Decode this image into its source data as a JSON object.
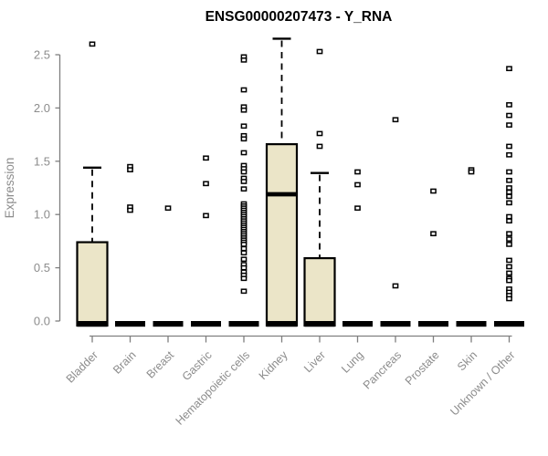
{
  "chart_data": {
    "type": "boxplot",
    "title": "ENSG00000207473 - Y_RNA",
    "ylabel": "Expression",
    "xlabel": "",
    "ylim": [
      0,
      2.5
    ],
    "yticks": [
      0.0,
      0.5,
      1.0,
      1.5,
      2.0,
      2.5
    ],
    "grid": false,
    "legend": "none",
    "categories": [
      "Bladder",
      "Brain",
      "Breast",
      "Gastric",
      "Hematopoietic cells",
      "Kidney",
      "Liver",
      "Lung",
      "Pancreas",
      "Prostate",
      "Skin",
      "Unknown / Other"
    ],
    "series": [
      {
        "category": "Bladder",
        "q1": 0,
        "median": 0,
        "q3": 0.74,
        "whisker_low": 0,
        "whisker_high": 1.44,
        "outliers": [
          2.6
        ]
      },
      {
        "category": "Brain",
        "q1": 0,
        "median": 0,
        "q3": 0,
        "whisker_low": 0,
        "whisker_high": 0,
        "outliers": [
          1.45,
          1.42,
          1.07,
          1.04
        ]
      },
      {
        "category": "Breast",
        "q1": 0,
        "median": 0,
        "q3": 0,
        "whisker_low": 0,
        "whisker_high": 0,
        "outliers": [
          1.06
        ]
      },
      {
        "category": "Gastric",
        "q1": 0,
        "median": 0,
        "q3": 0,
        "whisker_low": 0,
        "whisker_high": 0,
        "outliers": [
          1.53,
          1.29,
          0.99
        ]
      },
      {
        "category": "Hematopoietic cells",
        "q1": 0,
        "median": 0,
        "q3": 0,
        "whisker_low": 0,
        "whisker_high": 0,
        "outliers": [
          2.48,
          2.45,
          2.17,
          2.01,
          1.98,
          1.83,
          1.74,
          1.71,
          1.58,
          1.46,
          1.43,
          1.4,
          1.34,
          1.31,
          1.24,
          1.1,
          1.08,
          1.06,
          1.04,
          1.02,
          1.0,
          0.98,
          0.96,
          0.94,
          0.92,
          0.9,
          0.88,
          0.86,
          0.84,
          0.82,
          0.8,
          0.78,
          0.76,
          0.74,
          0.72,
          0.68,
          0.64,
          0.58,
          0.53,
          0.5,
          0.46,
          0.43,
          0.4,
          0.28
        ]
      },
      {
        "category": "Kidney",
        "q1": 0,
        "median": 1.19,
        "q3": 1.66,
        "whisker_low": 0,
        "whisker_high": 2.65,
        "outliers": []
      },
      {
        "category": "Liver",
        "q1": 0,
        "median": 0,
        "q3": 0.59,
        "whisker_low": 0,
        "whisker_high": 1.39,
        "outliers": [
          2.53,
          1.76,
          1.64
        ]
      },
      {
        "category": "Lung",
        "q1": 0,
        "median": 0,
        "q3": 0,
        "whisker_low": 0,
        "whisker_high": 0,
        "outliers": [
          1.4,
          1.28,
          1.06
        ]
      },
      {
        "category": "Pancreas",
        "q1": 0,
        "median": 0,
        "q3": 0,
        "whisker_low": 0,
        "whisker_high": 0,
        "outliers": [
          1.89,
          0.33
        ]
      },
      {
        "category": "Prostate",
        "q1": 0,
        "median": 0,
        "q3": 0,
        "whisker_low": 0,
        "whisker_high": 0,
        "outliers": [
          1.22,
          0.82
        ]
      },
      {
        "category": "Skin",
        "q1": 0,
        "median": 0,
        "q3": 0,
        "whisker_low": 0,
        "whisker_high": 0,
        "outliers": [
          1.42,
          1.4
        ]
      },
      {
        "category": "Unknown / Other",
        "q1": 0,
        "median": 0,
        "q3": 0,
        "whisker_low": 0,
        "whisker_high": 0,
        "outliers": [
          2.37,
          2.03,
          1.93,
          1.84,
          1.64,
          1.56,
          1.4,
          1.32,
          1.25,
          1.21,
          1.17,
          1.11,
          0.98,
          0.94,
          0.82,
          0.77,
          0.72,
          0.57,
          0.51,
          0.45,
          0.4,
          0.38,
          0.3,
          0.27,
          0.24,
          0.21
        ]
      }
    ],
    "colors": {
      "box_fill": "#ebe5c8",
      "box_stroke": "#000000",
      "median": "#000000",
      "whisker": "#000000",
      "outlier_fill": "#ffffff",
      "outlier_stroke": "#000000",
      "axis": "#7f7f7f",
      "tick_label": "#8c8c8c",
      "title": "#000000",
      "background": "#ffffff"
    }
  }
}
